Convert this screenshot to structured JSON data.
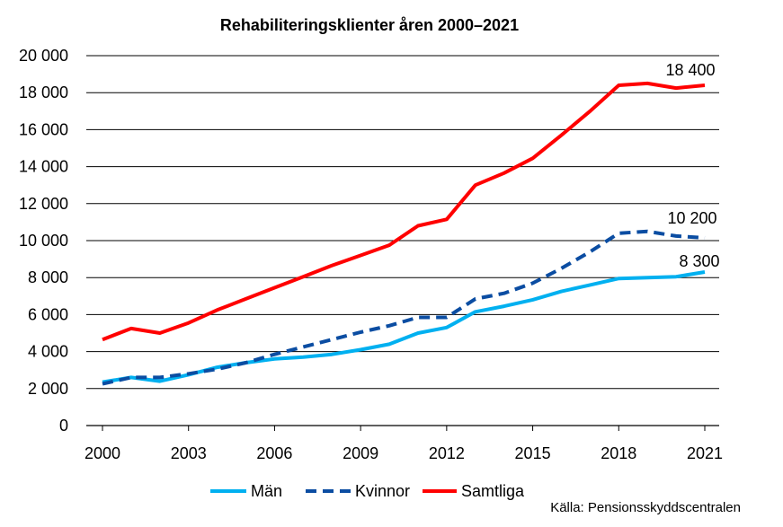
{
  "chart_data": {
    "type": "line",
    "title": "Rehabiliteringsklienter åren 2000–2021",
    "xlabel": "",
    "ylabel": "",
    "x": [
      2000,
      2001,
      2002,
      2003,
      2004,
      2005,
      2006,
      2007,
      2008,
      2009,
      2010,
      2011,
      2012,
      2013,
      2014,
      2015,
      2016,
      2017,
      2018,
      2019,
      2020,
      2021
    ],
    "x_ticks": [
      "2000",
      "2003",
      "2006",
      "2009",
      "2012",
      "2015",
      "2018",
      "2021"
    ],
    "y_ticks": [
      "0",
      "2 000",
      "4 000",
      "6 000",
      "8 000",
      "10 000",
      "12 000",
      "14 000",
      "16 000",
      "18 000",
      "20 000"
    ],
    "xlim": [
      2000,
      2021
    ],
    "ylim": [
      0,
      20000
    ],
    "grid": "horizontal",
    "legend": "bottom",
    "series": [
      {
        "name": "Män",
        "color": "#00b0f0",
        "style": "solid",
        "values": [
          2350,
          2600,
          2400,
          2750,
          3150,
          3400,
          3600,
          3700,
          3850,
          4100,
          4400,
          5000,
          5300,
          6150,
          6450,
          6800,
          7250,
          7600,
          7950,
          8000,
          8050,
          8300
        ]
      },
      {
        "name": "Kvinnor",
        "color": "#0b4da2",
        "style": "dashed",
        "values": [
          2250,
          2600,
          2600,
          2800,
          3050,
          3400,
          3850,
          4250,
          4650,
          5050,
          5400,
          5850,
          5850,
          6850,
          7150,
          7700,
          8500,
          9400,
          10400,
          10500,
          10250,
          10150
        ]
      },
      {
        "name": "Samtliga",
        "color": "#ff0000",
        "style": "solid",
        "values": [
          4650,
          5250,
          5000,
          5550,
          6250,
          6850,
          7450,
          8050,
          8650,
          9200,
          9750,
          10800,
          11150,
          13000,
          13650,
          14450,
          15700,
          17000,
          18400,
          18500,
          18250,
          18400
        ]
      }
    ],
    "annotations": [
      "18 400",
      "10 200",
      "8 300"
    ],
    "source": "Källa: Pensionsskyddscentralen"
  }
}
